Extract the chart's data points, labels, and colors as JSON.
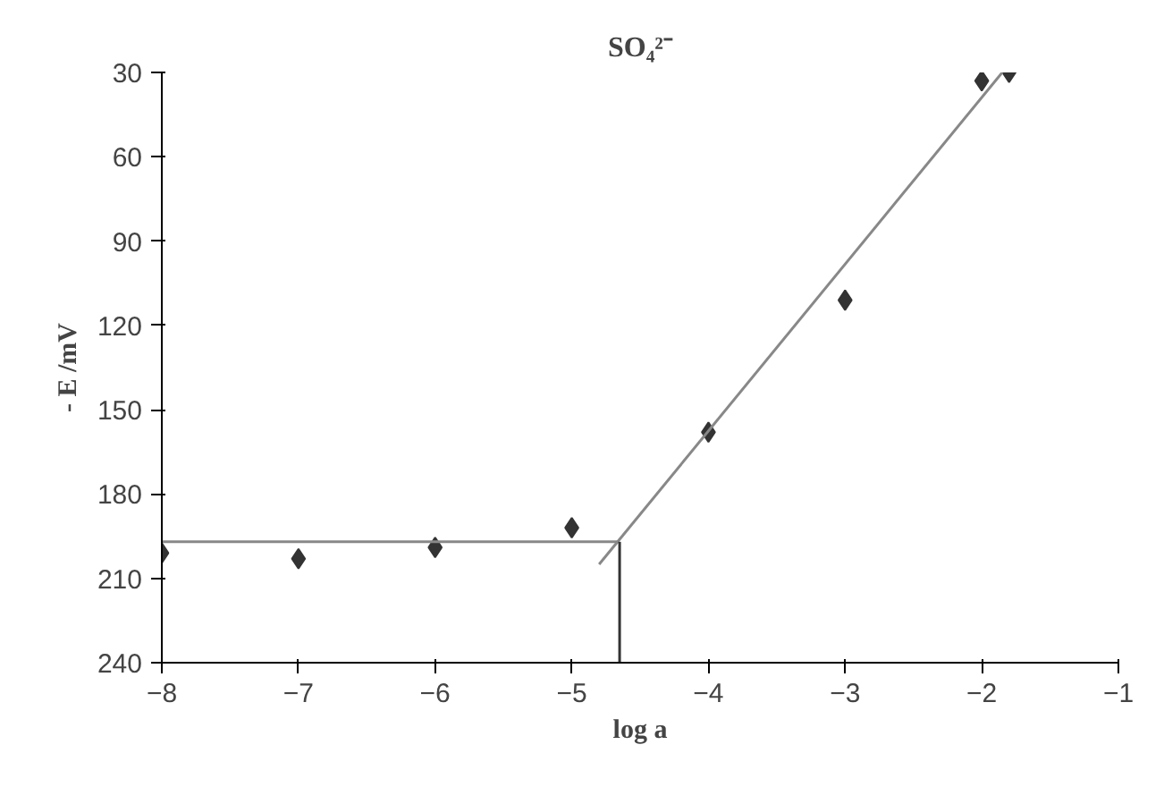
{
  "chart_data": {
    "type": "scatter",
    "title": "SO₄²⁻",
    "xlabel": "log a",
    "ylabel": "- E /mV",
    "series": [
      {
        "color": "#333333",
        "marker": "diamond",
        "x": [
          -8,
          -7,
          -6,
          -5,
          -4,
          -3,
          -2,
          -1.8
        ],
        "values": [
          201,
          203,
          199,
          192,
          158,
          111,
          33,
          30
        ]
      },
      {
        "type": "line",
        "color": "#888888",
        "marker": "none",
        "x": [
          -8,
          -4.65
        ],
        "values": [
          197,
          197
        ]
      },
      {
        "type": "line",
        "color": "#888888",
        "marker": "none",
        "x": [
          -4.8,
          -1.85
        ],
        "values": [
          205,
          30
        ]
      },
      {
        "type": "line",
        "color": "#333333",
        "marker": "none",
        "x": [
          -4.65,
          -4.65
        ],
        "values": [
          240,
          197
        ]
      }
    ],
    "xlim": [
      -8,
      -1
    ],
    "xticks": [
      -8,
      -7,
      -6,
      -5,
      -4,
      -3,
      -2,
      -1
    ],
    "ylim": [
      240,
      30
    ],
    "yticks": [
      30,
      60,
      90,
      120,
      150,
      180,
      210,
      240
    ],
    "grid": false
  }
}
